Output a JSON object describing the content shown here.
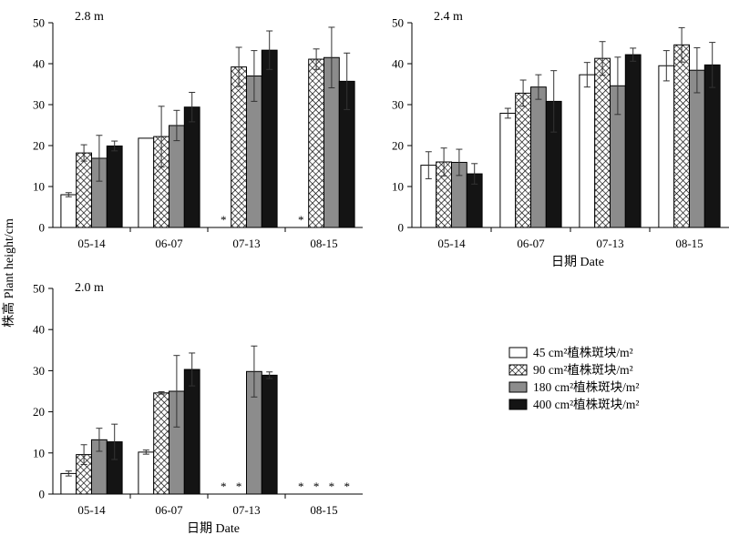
{
  "chart_data": [
    {
      "type": "bar",
      "panel_label": "2.8 m",
      "categories": [
        "05-14",
        "06-07",
        "07-13",
        "08-15"
      ],
      "ylim": [
        0,
        50
      ],
      "yticks": [
        0,
        10,
        20,
        30,
        40,
        50
      ],
      "xlabel": "",
      "series": [
        {
          "values": [
            8.0,
            21.8,
            null,
            null
          ],
          "errors": [
            0.5,
            0,
            null,
            null
          ],
          "missing_marks": [
            false,
            false,
            true,
            true
          ]
        },
        {
          "values": [
            18.2,
            22.2,
            39.2,
            41.1
          ],
          "errors": [
            2.0,
            7.4,
            4.8,
            2.5
          ],
          "missing_marks": [
            false,
            false,
            false,
            false
          ]
        },
        {
          "values": [
            16.9,
            24.9,
            37.0,
            41.5
          ],
          "errors": [
            5.6,
            3.7,
            6.2,
            7.4
          ],
          "missing_marks": [
            false,
            false,
            false,
            false
          ]
        },
        {
          "values": [
            19.9,
            29.4,
            43.3,
            35.7
          ],
          "errors": [
            1.2,
            3.6,
            4.7,
            6.9
          ],
          "missing_marks": [
            false,
            false,
            false,
            false
          ]
        }
      ]
    },
    {
      "type": "bar",
      "panel_label": "2.4 m",
      "categories": [
        "05-14",
        "06-07",
        "07-13",
        "08-15"
      ],
      "ylim": [
        0,
        50
      ],
      "yticks": [
        0,
        10,
        20,
        30,
        40,
        50
      ],
      "xlabel": "日期 Date",
      "series": [
        {
          "values": [
            15.2,
            27.9,
            37.3,
            39.5
          ],
          "errors": [
            3.3,
            1.2,
            3.0,
            3.7
          ],
          "missing_marks": [
            false,
            false,
            false,
            false
          ]
        },
        {
          "values": [
            16.0,
            32.8,
            41.3,
            44.6
          ],
          "errors": [
            3.4,
            3.2,
            4.1,
            4.2
          ],
          "missing_marks": [
            false,
            false,
            false,
            false
          ]
        },
        {
          "values": [
            15.9,
            34.3,
            34.6,
            38.4
          ],
          "errors": [
            3.2,
            3.0,
            7.0,
            5.5
          ],
          "missing_marks": [
            false,
            false,
            false,
            false
          ]
        },
        {
          "values": [
            13.1,
            30.8,
            42.2,
            39.7
          ],
          "errors": [
            2.5,
            7.5,
            1.6,
            5.5
          ],
          "missing_marks": [
            false,
            false,
            false,
            false
          ]
        }
      ]
    },
    {
      "type": "bar",
      "panel_label": "2.0 m",
      "categories": [
        "05-14",
        "06-07",
        "07-13",
        "08-15"
      ],
      "ylim": [
        0,
        50
      ],
      "yticks": [
        0,
        10,
        20,
        30,
        40,
        50
      ],
      "xlabel": "日期 Date",
      "series": [
        {
          "values": [
            5.0,
            10.2,
            null,
            null
          ],
          "errors": [
            0.6,
            0.5,
            null,
            null
          ],
          "missing_marks": [
            false,
            false,
            true,
            true
          ]
        },
        {
          "values": [
            9.6,
            24.6,
            null,
            null
          ],
          "errors": [
            2.4,
            0.3,
            null,
            null
          ],
          "missing_marks": [
            false,
            false,
            true,
            true
          ]
        },
        {
          "values": [
            13.2,
            25.0,
            29.8,
            null
          ],
          "errors": [
            2.8,
            8.7,
            6.2,
            null
          ],
          "missing_marks": [
            false,
            false,
            false,
            true
          ]
        },
        {
          "values": [
            12.7,
            30.3,
            28.9,
            null
          ],
          "errors": [
            4.3,
            4.0,
            0.8,
            null
          ],
          "missing_marks": [
            false,
            false,
            false,
            true
          ]
        }
      ]
    }
  ],
  "ylabel": "株高 Plant height/cm",
  "missing_marker": "*",
  "legend": {
    "placement": "right",
    "entries": [
      {
        "text": "45 cm²植株斑块/m²",
        "fill": "white"
      },
      {
        "text": "90 cm²植株斑块/m²",
        "fill": "crosshatch"
      },
      {
        "text": "180 cm²植株斑块/m²",
        "fill": "gray"
      },
      {
        "text": "400 cm²植株斑块/m²",
        "fill": "black"
      }
    ]
  },
  "colors": {
    "gray_fill": "#8c8c8c",
    "black_fill": "#141414",
    "axis": "#000000"
  }
}
